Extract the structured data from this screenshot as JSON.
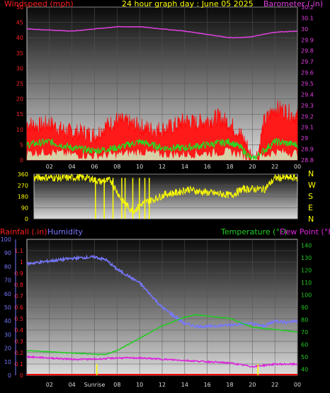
{
  "header": {
    "left_label": "Windspeed (mph)",
    "title": "24 hour graph day : June 05 2025",
    "right_label": "Barometer (.in)"
  },
  "bottom_labels": {
    "rainfall": "Rainfall (.in)",
    "humidity": "Humidity",
    "temperature": "Temperature (°F)",
    "dewpoint": "Dew Point (°F)",
    "sunrise": "Sunrise"
  },
  "compass": [
    "N",
    "W",
    "S",
    "E",
    "N"
  ],
  "colors": {
    "windspeed": "#ff1a1a",
    "windgust": "#ff0000",
    "windavg": "#22dd22",
    "barometer": "#e040e0",
    "direction": "#ffff00",
    "humidity": "#7777ff",
    "temperature": "#22cc22",
    "dewpoint": "#dd22dd",
    "rainfall": "#ff0000",
    "sunrise_marker": "#ffff00"
  },
  "chart_data": [
    {
      "type": "area",
      "title": "24 hour graph day : June 05 2025",
      "x_ticks": [
        "02",
        "04",
        "06",
        "08",
        "10",
        "12",
        "14",
        "16",
        "18",
        "20",
        "22",
        "00"
      ],
      "left_axis": {
        "label": "Windspeed (mph)",
        "range": [
          0,
          50
        ],
        "ticks": [
          "0",
          "5",
          "10",
          "15",
          "20",
          "25",
          "30",
          "35",
          "40",
          "45",
          "50"
        ]
      },
      "right_axis": {
        "label": "Barometer (.in)",
        "range": [
          28.8,
          30.2
        ],
        "ticks": [
          "28.8",
          "28.9",
          "29",
          "29.1",
          "29.2",
          "29.3",
          "29.4",
          "29.5",
          "29.6",
          "29.7",
          "29.8",
          "29.9",
          "30",
          "30.1",
          "30.2"
        ]
      },
      "series": [
        {
          "name": "Barometer",
          "axis": "right",
          "x": [
            0,
            2,
            4,
            6,
            8,
            10,
            12,
            14,
            16,
            18,
            19,
            20,
            22,
            24
          ],
          "values": [
            30.0,
            29.99,
            29.98,
            30.0,
            30.02,
            30.02,
            30.0,
            29.98,
            29.95,
            29.92,
            29.92,
            29.93,
            29.97,
            29.98
          ]
        },
        {
          "name": "Wind gust",
          "axis": "left",
          "x": [
            0,
            1,
            2,
            3,
            4,
            5,
            6,
            7,
            8,
            9,
            10,
            11,
            12,
            13,
            14,
            15,
            16,
            17,
            18,
            19,
            19.5,
            20,
            20.5,
            21,
            22,
            23,
            24
          ],
          "values": [
            12,
            11,
            12,
            10,
            9,
            9,
            8,
            11,
            13,
            12,
            11,
            10,
            10,
            11,
            13,
            12,
            13,
            14,
            12,
            8,
            5,
            0,
            2,
            12,
            17,
            16,
            14
          ]
        },
        {
          "name": "Wind average",
          "axis": "left",
          "x": [
            0,
            2,
            4,
            6,
            8,
            10,
            12,
            14,
            16,
            18,
            19,
            20,
            21,
            22,
            24
          ],
          "values": [
            5,
            6,
            4,
            3,
            4,
            6,
            4,
            4,
            5,
            6,
            4,
            0,
            3,
            6,
            5
          ]
        }
      ]
    },
    {
      "type": "scatter",
      "x_ticks": [
        "02",
        "04",
        "06",
        "08",
        "10",
        "12",
        "14",
        "16",
        "18",
        "20",
        "22",
        "00"
      ],
      "left_axis": {
        "range": [
          0,
          360
        ],
        "ticks": [
          "0",
          "90",
          "180",
          "270",
          "360"
        ]
      },
      "series": [
        {
          "name": "Wind direction",
          "x": [
            0,
            1,
            2,
            3,
            4,
            5,
            6,
            7,
            8,
            9,
            10,
            11,
            12,
            13,
            14,
            15,
            16,
            17,
            18,
            19,
            20,
            21,
            22,
            23,
            24
          ],
          "values": [
            330,
            335,
            330,
            330,
            335,
            330,
            300,
            310,
            150,
            60,
            130,
            160,
            200,
            210,
            240,
            220,
            210,
            200,
            190,
            240,
            240,
            240,
            330,
            330,
            330
          ]
        }
      ]
    },
    {
      "type": "line",
      "x_ticks": [
        "02",
        "04",
        "Sunrise",
        "08",
        "10",
        "12",
        "14",
        "16",
        "18",
        "20",
        "22",
        "00"
      ],
      "left_axis_humidity": {
        "label": "Humidity",
        "range": [
          0,
          100
        ],
        "ticks": [
          "0",
          "10",
          "20",
          "30",
          "40",
          "50",
          "60",
          "70",
          "80",
          "90",
          "100"
        ]
      },
      "left_axis_rain": {
        "label": "Rainfall (.in)",
        "range": [
          0,
          1.2
        ],
        "ticks": [
          "0",
          "0.1",
          "0.2",
          "0.3",
          "0.4",
          "0.5",
          "0.6",
          "0.7",
          "0.8",
          "0.9",
          "1",
          "1.1"
        ]
      },
      "right_axis": {
        "label": "Temperature (°F)",
        "range": [
          35,
          145
        ],
        "ticks": [
          "40",
          "50",
          "60",
          "70",
          "80",
          "90",
          "100",
          "110",
          "120",
          "130",
          "140"
        ]
      },
      "series": [
        {
          "name": "Humidity",
          "axis": "humidity",
          "x": [
            0,
            2,
            4,
            6,
            7,
            8,
            10,
            12,
            14,
            15,
            16,
            18,
            19,
            20,
            21,
            22,
            23,
            24
          ],
          "values": [
            82,
            84,
            86,
            87,
            85,
            78,
            68,
            50,
            38,
            36,
            36,
            37,
            38,
            38,
            36,
            40,
            39,
            40
          ]
        },
        {
          "name": "Temperature",
          "axis": "temperature",
          "x": [
            0,
            2,
            4,
            6,
            7,
            8,
            10,
            12,
            14,
            15,
            16,
            18,
            20,
            22,
            24
          ],
          "values": [
            55,
            54,
            53,
            52,
            52,
            55,
            65,
            75,
            82,
            84,
            83,
            81,
            74,
            72,
            70
          ]
        },
        {
          "name": "Dew Point",
          "axis": "temperature",
          "x": [
            0,
            2,
            4,
            6,
            8,
            10,
            12,
            14,
            16,
            18,
            20,
            22,
            24
          ],
          "values": [
            50,
            49,
            48,
            48,
            49,
            49,
            48,
            47,
            46,
            45,
            42,
            44,
            44
          ]
        },
        {
          "name": "Rainfall",
          "axis": "rain",
          "x": [
            0,
            24
          ],
          "values": [
            0,
            0
          ]
        }
      ]
    }
  ]
}
